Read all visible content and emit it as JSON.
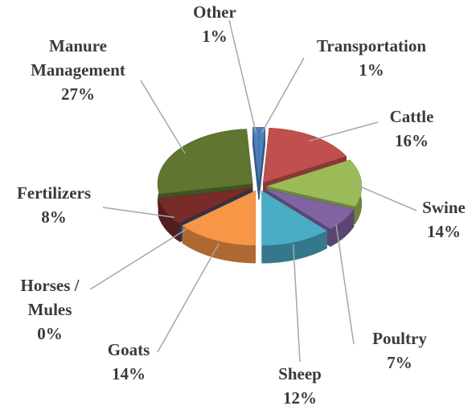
{
  "chart_data": {
    "type": "pie",
    "categories": [
      "Transportation",
      "Cattle",
      "Swine",
      "Poultry",
      "Sheep",
      "Goats",
      "Horses / Mules",
      "Fertilizers",
      "Manure Management",
      "Other"
    ],
    "values": [
      1,
      16,
      14,
      7,
      12,
      14,
      0,
      8,
      27,
      1
    ],
    "value_labels": [
      "1%",
      "16%",
      "14%",
      "7%",
      "12%",
      "14%",
      "0%",
      "8%",
      "27%",
      "1%"
    ],
    "colors": [
      "#4f81bd",
      "#c0504d",
      "#9bbb59",
      "#8064a2",
      "#4bacc6",
      "#f79646",
      "#2c4d75",
      "#772c2a",
      "#5f7530",
      "#4f81bd"
    ],
    "legend": false
  }
}
